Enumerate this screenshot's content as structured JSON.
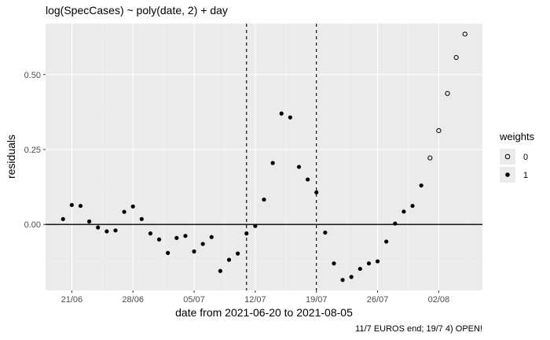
{
  "chart_data": {
    "type": "scatter",
    "title": "log(SpecCases) ~ poly(date, 2) + day",
    "xlabel": "date from 2021-06-20 to 2021-08-05",
    "ylabel": "residuals",
    "caption": "11/7 EUROS end; 19/7 4) OPEN!",
    "x_ticks": [
      {
        "date": "2021-06-21",
        "label": "21/06"
      },
      {
        "date": "2021-06-28",
        "label": "28/06"
      },
      {
        "date": "2021-07-05",
        "label": "05/07"
      },
      {
        "date": "2021-07-12",
        "label": "12/07"
      },
      {
        "date": "2021-07-19",
        "label": "19/07"
      },
      {
        "date": "2021-07-26",
        "label": "26/07"
      },
      {
        "date": "2021-08-02",
        "label": "02/08"
      }
    ],
    "xlim": [
      "2021-06-18",
      "2021-08-07"
    ],
    "y_ticks": [
      {
        "value": 0.0,
        "label": "0.00"
      },
      {
        "value": 0.25,
        "label": "0.25"
      },
      {
        "value": 0.5,
        "label": "0.50"
      }
    ],
    "ylim": [
      -0.22,
      0.67
    ],
    "hline": 0,
    "vlines": [
      "2021-07-11",
      "2021-07-19"
    ],
    "grid": true,
    "legend": {
      "title": "weights",
      "position": "right",
      "entries": [
        {
          "label": "0",
          "marker": "open-circle"
        },
        {
          "label": "1",
          "marker": "filled-circle"
        }
      ]
    },
    "series": [
      {
        "name": "1",
        "marker": "filled-circle",
        "points": [
          {
            "x": "2021-06-20",
            "y": 0.018
          },
          {
            "x": "2021-06-21",
            "y": 0.065
          },
          {
            "x": "2021-06-22",
            "y": 0.062
          },
          {
            "x": "2021-06-23",
            "y": 0.01
          },
          {
            "x": "2021-06-24",
            "y": -0.01
          },
          {
            "x": "2021-06-25",
            "y": -0.023
          },
          {
            "x": "2021-06-26",
            "y": -0.02
          },
          {
            "x": "2021-06-27",
            "y": 0.042
          },
          {
            "x": "2021-06-28",
            "y": 0.06
          },
          {
            "x": "2021-06-29",
            "y": 0.018
          },
          {
            "x": "2021-06-30",
            "y": -0.03
          },
          {
            "x": "2021-07-01",
            "y": -0.05
          },
          {
            "x": "2021-07-02",
            "y": -0.095
          },
          {
            "x": "2021-07-03",
            "y": -0.045
          },
          {
            "x": "2021-07-04",
            "y": -0.038
          },
          {
            "x": "2021-07-05",
            "y": -0.09
          },
          {
            "x": "2021-07-06",
            "y": -0.065
          },
          {
            "x": "2021-07-07",
            "y": -0.042
          },
          {
            "x": "2021-07-08",
            "y": -0.155
          },
          {
            "x": "2021-07-09",
            "y": -0.118
          },
          {
            "x": "2021-07-10",
            "y": -0.097
          },
          {
            "x": "2021-07-11",
            "y": -0.03
          },
          {
            "x": "2021-07-12",
            "y": -0.005
          },
          {
            "x": "2021-07-13",
            "y": 0.083
          },
          {
            "x": "2021-07-14",
            "y": 0.205
          },
          {
            "x": "2021-07-15",
            "y": 0.37
          },
          {
            "x": "2021-07-16",
            "y": 0.357
          },
          {
            "x": "2021-07-17",
            "y": 0.192
          },
          {
            "x": "2021-07-18",
            "y": 0.15
          },
          {
            "x": "2021-07-19",
            "y": 0.107
          },
          {
            "x": "2021-07-20",
            "y": -0.027
          },
          {
            "x": "2021-07-21",
            "y": -0.13
          },
          {
            "x": "2021-07-22",
            "y": -0.185
          },
          {
            "x": "2021-07-23",
            "y": -0.175
          },
          {
            "x": "2021-07-24",
            "y": -0.148
          },
          {
            "x": "2021-07-25",
            "y": -0.13
          },
          {
            "x": "2021-07-26",
            "y": -0.123
          },
          {
            "x": "2021-07-27",
            "y": -0.057
          },
          {
            "x": "2021-07-28",
            "y": 0.003
          },
          {
            "x": "2021-07-29",
            "y": 0.043
          },
          {
            "x": "2021-07-30",
            "y": 0.062
          },
          {
            "x": "2021-07-31",
            "y": 0.13
          }
        ]
      },
      {
        "name": "0",
        "marker": "open-circle",
        "points": [
          {
            "x": "2021-08-01",
            "y": 0.222
          },
          {
            "x": "2021-08-02",
            "y": 0.313
          },
          {
            "x": "2021-08-03",
            "y": 0.437
          },
          {
            "x": "2021-08-04",
            "y": 0.557
          },
          {
            "x": "2021-08-05",
            "y": 0.635
          }
        ]
      }
    ]
  }
}
